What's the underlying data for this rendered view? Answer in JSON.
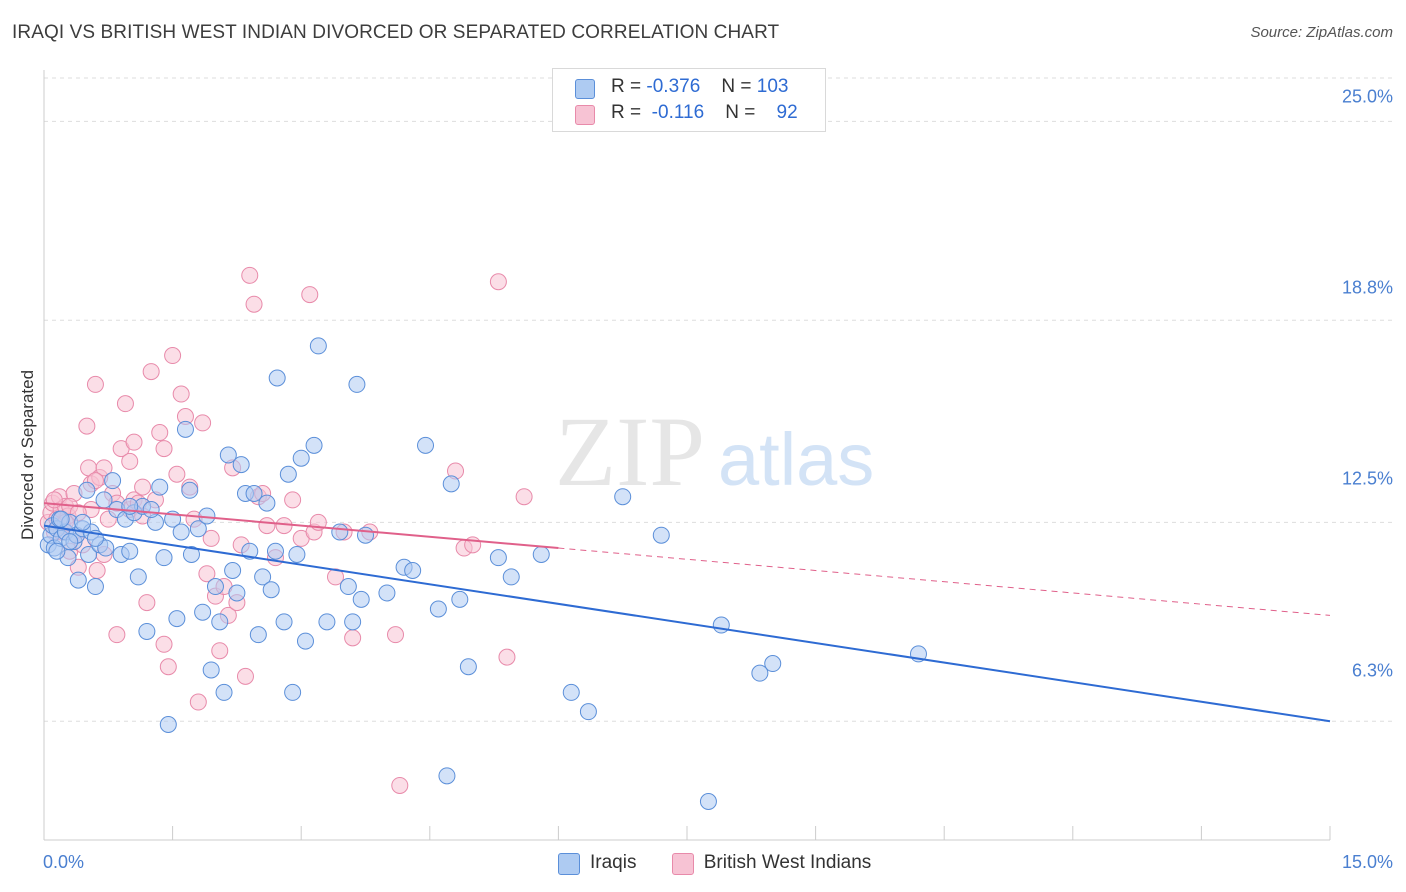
{
  "chart": {
    "title": "IRAQI VS BRITISH WEST INDIAN DIVORCED OR SEPARATED CORRELATION CHART",
    "source": "Source: ZipAtlas.com",
    "ylabel": "Divorced or Separated",
    "watermark_bold": "ZIP",
    "watermark_light": "atlas",
    "y_ticks": [
      "25.0%",
      "18.8%",
      "12.5%",
      "6.3%"
    ],
    "x_ticks": [
      "0.0%",
      "15.0%"
    ]
  },
  "stats": {
    "rows": [
      {
        "r_label": "R =",
        "r_value": "-0.376",
        "n_label": "N =",
        "n_value": "103"
      },
      {
        "r_label": "R =",
        "r_value": "-0.116",
        "n_label": "N =",
        "n_value": "92"
      }
    ]
  },
  "legend": {
    "items": [
      {
        "label": "Iraqis"
      },
      {
        "label": "British West Indians"
      }
    ]
  },
  "colors": {
    "blue_fill": "#aecbf2",
    "blue_stroke": "#5b8fd9",
    "blue_line": "#2e6bd3",
    "pink_fill": "#f7c3d4",
    "pink_stroke": "#e88aaa",
    "pink_line": "#e0608a",
    "tick_text": "#4a7fd0",
    "grid": "#dddddd"
  },
  "chart_data": {
    "type": "scatter",
    "x_range": [
      0,
      15
    ],
    "y_range": [
      2.6,
      26.6
    ],
    "y_gridlines": [
      6.3,
      12.5,
      18.8,
      25.0
    ],
    "series": [
      {
        "name": "Iraqis",
        "trend": {
          "x": [
            0.0,
            15.0
          ],
          "y": [
            12.4,
            6.3
          ],
          "dashed_from": null
        },
        "points": [
          [
            0.05,
            11.8
          ],
          [
            0.08,
            12.1
          ],
          [
            0.1,
            12.4
          ],
          [
            0.12,
            11.7
          ],
          [
            0.15,
            12.3
          ],
          [
            0.18,
            12.6
          ],
          [
            0.2,
            12.0
          ],
          [
            0.25,
            12.2
          ],
          [
            0.28,
            11.4
          ],
          [
            0.3,
            12.5
          ],
          [
            0.35,
            11.9
          ],
          [
            0.38,
            12.1
          ],
          [
            0.4,
            10.7
          ],
          [
            0.45,
            12.3
          ],
          [
            0.5,
            13.5
          ],
          [
            0.52,
            11.5
          ],
          [
            0.55,
            12.2
          ],
          [
            0.6,
            10.5
          ],
          [
            0.65,
            11.8
          ],
          [
            0.7,
            13.2
          ],
          [
            0.72,
            11.7
          ],
          [
            0.8,
            13.8
          ],
          [
            0.85,
            12.9
          ],
          [
            0.9,
            11.5
          ],
          [
            0.95,
            12.6
          ],
          [
            1.0,
            11.6
          ],
          [
            1.05,
            12.8
          ],
          [
            1.1,
            10.8
          ],
          [
            1.15,
            13.0
          ],
          [
            1.2,
            9.1
          ],
          [
            1.3,
            12.5
          ],
          [
            1.35,
            13.6
          ],
          [
            1.4,
            11.4
          ],
          [
            1.45,
            6.2
          ],
          [
            1.5,
            12.6
          ],
          [
            1.55,
            9.5
          ],
          [
            1.6,
            12.2
          ],
          [
            1.65,
            15.4
          ],
          [
            1.7,
            13.5
          ],
          [
            1.72,
            11.5
          ],
          [
            1.8,
            12.3
          ],
          [
            1.85,
            9.7
          ],
          [
            1.9,
            12.7
          ],
          [
            1.95,
            7.9
          ],
          [
            2.0,
            10.5
          ],
          [
            2.05,
            9.4
          ],
          [
            2.1,
            7.2
          ],
          [
            2.15,
            14.6
          ],
          [
            2.2,
            11.0
          ],
          [
            2.25,
            10.3
          ],
          [
            2.3,
            14.3
          ],
          [
            2.35,
            13.4
          ],
          [
            2.4,
            11.6
          ],
          [
            2.45,
            13.4
          ],
          [
            2.5,
            9.0
          ],
          [
            2.55,
            10.8
          ],
          [
            2.6,
            13.1
          ],
          [
            2.65,
            10.4
          ],
          [
            2.7,
            11.6
          ],
          [
            2.72,
            17.0
          ],
          [
            2.8,
            9.4
          ],
          [
            2.85,
            14.0
          ],
          [
            2.9,
            7.2
          ],
          [
            3.0,
            14.5
          ],
          [
            3.05,
            8.8
          ],
          [
            3.15,
            14.9
          ],
          [
            3.2,
            18.0
          ],
          [
            3.3,
            9.4
          ],
          [
            3.45,
            12.2
          ],
          [
            3.55,
            10.5
          ],
          [
            3.6,
            9.4
          ],
          [
            3.65,
            16.8
          ],
          [
            3.7,
            10.1
          ],
          [
            3.75,
            12.1
          ],
          [
            4.0,
            10.3
          ],
          [
            4.2,
            11.1
          ],
          [
            4.3,
            11.0
          ],
          [
            4.45,
            14.9
          ],
          [
            4.6,
            9.8
          ],
          [
            4.7,
            4.6
          ],
          [
            4.75,
            13.7
          ],
          [
            4.85,
            10.1
          ],
          [
            4.95,
            8.0
          ],
          [
            5.3,
            11.4
          ],
          [
            5.45,
            10.8
          ],
          [
            5.8,
            11.5
          ],
          [
            6.15,
            7.2
          ],
          [
            6.35,
            6.6
          ],
          [
            6.75,
            13.3
          ],
          [
            7.2,
            12.1
          ],
          [
            7.75,
            3.8
          ],
          [
            7.9,
            9.3
          ],
          [
            8.35,
            7.8
          ],
          [
            8.5,
            8.1
          ],
          [
            10.2,
            8.4
          ],
          [
            0.6,
            12.0
          ],
          [
            1.0,
            13.0
          ],
          [
            0.3,
            11.9
          ],
          [
            0.45,
            12.5
          ],
          [
            0.2,
            12.6
          ],
          [
            1.25,
            12.9
          ],
          [
            2.95,
            11.5
          ],
          [
            0.15,
            11.6
          ]
        ]
      },
      {
        "name": "British West Indians",
        "trend": {
          "x": [
            0.0,
            15.0
          ],
          "y": [
            13.1,
            9.6
          ],
          "dashed_from": 6.0
        },
        "points": [
          [
            0.05,
            12.5
          ],
          [
            0.08,
            12.8
          ],
          [
            0.1,
            13.1
          ],
          [
            0.12,
            12.2
          ],
          [
            0.15,
            12.6
          ],
          [
            0.18,
            13.3
          ],
          [
            0.2,
            12.9
          ],
          [
            0.22,
            12.4
          ],
          [
            0.25,
            13.0
          ],
          [
            0.28,
            12.7
          ],
          [
            0.3,
            11.6
          ],
          [
            0.35,
            13.4
          ],
          [
            0.38,
            12.1
          ],
          [
            0.4,
            11.1
          ],
          [
            0.45,
            11.8
          ],
          [
            0.5,
            15.5
          ],
          [
            0.52,
            14.2
          ],
          [
            0.55,
            13.7
          ],
          [
            0.6,
            16.8
          ],
          [
            0.62,
            11.0
          ],
          [
            0.65,
            13.9
          ],
          [
            0.7,
            14.2
          ],
          [
            0.75,
            12.6
          ],
          [
            0.8,
            13.4
          ],
          [
            0.85,
            9.0
          ],
          [
            0.9,
            14.8
          ],
          [
            0.95,
            16.2
          ],
          [
            1.0,
            12.9
          ],
          [
            1.05,
            13.2
          ],
          [
            1.1,
            13.1
          ],
          [
            1.15,
            13.6
          ],
          [
            1.2,
            10.0
          ],
          [
            1.25,
            17.2
          ],
          [
            1.3,
            13.2
          ],
          [
            1.35,
            15.3
          ],
          [
            1.4,
            8.7
          ],
          [
            1.45,
            8.0
          ],
          [
            1.5,
            17.7
          ],
          [
            1.55,
            14.0
          ],
          [
            1.6,
            16.5
          ],
          [
            1.65,
            15.8
          ],
          [
            1.7,
            13.6
          ],
          [
            1.75,
            12.6
          ],
          [
            1.8,
            6.9
          ],
          [
            1.85,
            15.6
          ],
          [
            1.9,
            10.9
          ],
          [
            1.95,
            12.0
          ],
          [
            2.0,
            10.2
          ],
          [
            2.05,
            8.5
          ],
          [
            2.1,
            10.5
          ],
          [
            2.15,
            9.6
          ],
          [
            2.2,
            14.2
          ],
          [
            2.25,
            10.0
          ],
          [
            2.3,
            11.8
          ],
          [
            2.35,
            7.7
          ],
          [
            2.4,
            20.2
          ],
          [
            2.45,
            19.3
          ],
          [
            2.5,
            13.3
          ],
          [
            2.55,
            13.4
          ],
          [
            2.6,
            12.4
          ],
          [
            2.7,
            11.4
          ],
          [
            2.8,
            12.4
          ],
          [
            2.9,
            13.2
          ],
          [
            3.0,
            12.0
          ],
          [
            3.1,
            19.6
          ],
          [
            3.15,
            12.2
          ],
          [
            3.2,
            12.5
          ],
          [
            3.4,
            10.8
          ],
          [
            3.5,
            12.2
          ],
          [
            3.6,
            8.9
          ],
          [
            3.8,
            12.2
          ],
          [
            4.1,
            9.0
          ],
          [
            4.15,
            4.3
          ],
          [
            4.8,
            14.1
          ],
          [
            4.9,
            11.7
          ],
          [
            5.0,
            11.8
          ],
          [
            5.3,
            20.0
          ],
          [
            5.4,
            8.3
          ],
          [
            5.6,
            13.3
          ],
          [
            0.55,
            12.9
          ],
          [
            0.85,
            13.1
          ],
          [
            1.0,
            14.4
          ],
          [
            1.15,
            12.7
          ],
          [
            0.3,
            13.0
          ],
          [
            0.12,
            13.2
          ],
          [
            0.2,
            12.2
          ],
          [
            0.7,
            11.5
          ],
          [
            1.05,
            15.0
          ],
          [
            0.4,
            12.8
          ],
          [
            0.6,
            13.8
          ],
          [
            0.25,
            12.5
          ],
          [
            1.4,
            14.8
          ]
        ]
      }
    ]
  }
}
